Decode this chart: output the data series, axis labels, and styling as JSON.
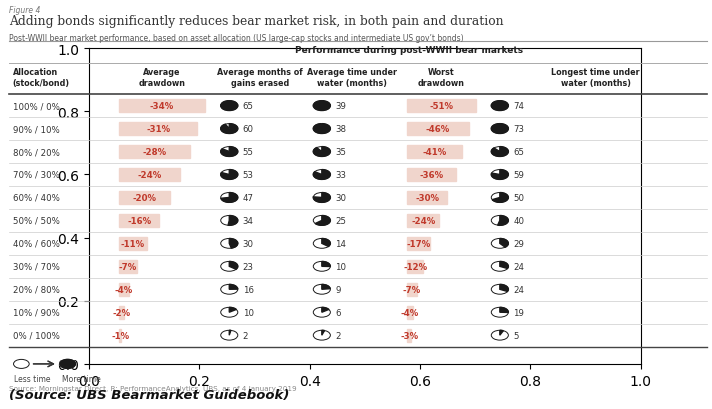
{
  "figure_label": "Figure 4",
  "title": "Adding bonds significantly reduces bear market risk, in both pain and duration",
  "subtitle": "Post-WWII bear market performance, based on asset allocation (US large-cap stocks and intermediate US gov’t bonds)",
  "table_header": "Performance during post-WWII bear markets",
  "col_headers": [
    "Allocation\n(stock/bond)",
    "Average\ndrawdown",
    "Average months of\ngains erased",
    "Average time under\nwater (months)",
    "Worst\ndrawdown",
    "Longest time under\nwater (months)"
  ],
  "rows": [
    {
      "alloc": "100% / 0%",
      "avg_dd": "-34%",
      "avg_mo": 65,
      "avg_tw": 39,
      "worst_dd": "-51%",
      "longest_tw": 74
    },
    {
      "alloc": "90% / 10%",
      "avg_dd": "-31%",
      "avg_mo": 60,
      "avg_tw": 38,
      "worst_dd": "-46%",
      "longest_tw": 73
    },
    {
      "alloc": "80% / 20%",
      "avg_dd": "-28%",
      "avg_mo": 55,
      "avg_tw": 35,
      "worst_dd": "-41%",
      "longest_tw": 65
    },
    {
      "alloc": "70% / 30%",
      "avg_dd": "-24%",
      "avg_mo": 53,
      "avg_tw": 33,
      "worst_dd": "-36%",
      "longest_tw": 59
    },
    {
      "alloc": "60% / 40%",
      "avg_dd": "-20%",
      "avg_mo": 47,
      "avg_tw": 30,
      "worst_dd": "-30%",
      "longest_tw": 50
    },
    {
      "alloc": "50% / 50%",
      "avg_dd": "-16%",
      "avg_mo": 34,
      "avg_tw": 25,
      "worst_dd": "-24%",
      "longest_tw": 40
    },
    {
      "alloc": "40% / 60%",
      "avg_dd": "-11%",
      "avg_mo": 30,
      "avg_tw": 14,
      "worst_dd": "-17%",
      "longest_tw": 29
    },
    {
      "alloc": "30% / 70%",
      "avg_dd": "-7%",
      "avg_mo": 23,
      "avg_tw": 10,
      "worst_dd": "-12%",
      "longest_tw": 24
    },
    {
      "alloc": "20% / 80%",
      "avg_dd": "-4%",
      "avg_mo": 16,
      "avg_tw": 9,
      "worst_dd": "-7%",
      "longest_tw": 24
    },
    {
      "alloc": "10% / 90%",
      "avg_dd": "-2%",
      "avg_mo": 10,
      "avg_tw": 6,
      "worst_dd": "-4%",
      "longest_tw": 19
    },
    {
      "alloc": "0% / 100%",
      "avg_dd": "-1%",
      "avg_mo": 2,
      "avg_tw": 2,
      "worst_dd": "-3%",
      "longest_tw": 5
    }
  ],
  "highlight_color": "#f0d5cc",
  "source_text": "Source: Morningstar Direct, R: PerformanceAnalytics, UBS, as of 4 January 2019",
  "bottom_label": "(Source: UBS Bearmarket Guidebook)",
  "legend_less": "Less time",
  "legend_more": "More time",
  "max_avg_dd": 34,
  "max_worst_dd": 51,
  "max_avg_mo": 65,
  "max_avg_tw": 39,
  "max_longest_tw": 74
}
